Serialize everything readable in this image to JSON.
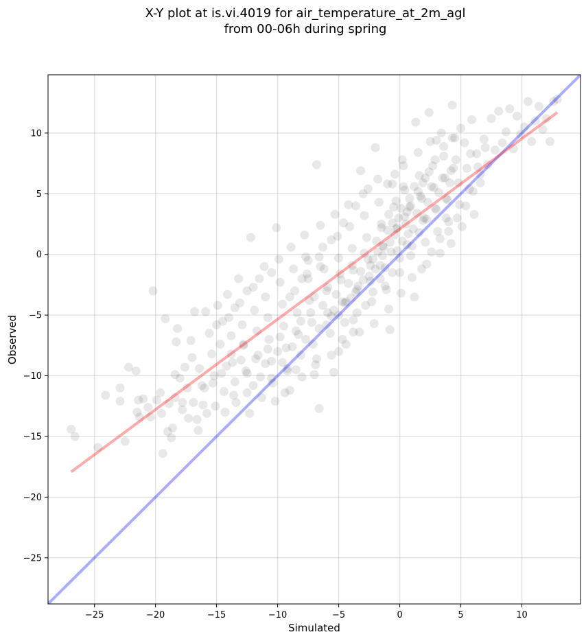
{
  "chart_data": {
    "type": "scatter",
    "title_line1": "X-Y plot at is.vi.4019 for air_temperature_at_2m_agl",
    "title_line2": "from 00-06h during spring",
    "xlabel": "Simulated",
    "ylabel": "Observed",
    "xlim": [
      -28.8,
      14.8
    ],
    "ylim": [
      -28.8,
      14.8
    ],
    "x_ticks": [
      -25,
      -20,
      -15,
      -10,
      -5,
      0,
      5,
      10
    ],
    "y_ticks": [
      -25,
      -20,
      -15,
      -10,
      -5,
      0,
      5,
      10
    ],
    "x_tick_labels": [
      "−25",
      "−20",
      "−15",
      "−10",
      "−5",
      "0",
      "5",
      "10"
    ],
    "y_tick_labels": [
      "−25",
      "−20",
      "−15",
      "−10",
      "−5",
      "0",
      "5",
      "10"
    ],
    "grid": true,
    "point_color": "#000000",
    "point_opacity": 0.09,
    "points": [
      [
        -26.9,
        -14.4
      ],
      [
        -26.6,
        -15.0
      ],
      [
        -24.7,
        -15.9
      ],
      [
        -24.1,
        -11.6
      ],
      [
        -22.9,
        -12.1
      ],
      [
        -22.9,
        -11.0
      ],
      [
        -22.5,
        -15.4
      ],
      [
        -22.2,
        -9.3
      ],
      [
        -21.6,
        -9.6
      ],
      [
        -21.5,
        -13.0
      ],
      [
        -21.3,
        -13.4
      ],
      [
        -21.0,
        -11.9
      ],
      [
        -20.6,
        -12.6
      ],
      [
        -20.2,
        -3.0
      ],
      [
        -19.9,
        -12.0
      ],
      [
        -19.5,
        -13.1
      ],
      [
        -19.4,
        -16.4
      ],
      [
        -19.2,
        -5.3
      ],
      [
        -18.9,
        -12.3
      ],
      [
        -18.7,
        -15.1
      ],
      [
        -18.6,
        -14.3
      ],
      [
        -18.4,
        -11.8
      ],
      [
        -18.3,
        -7.2
      ],
      [
        -18.2,
        -6.1
      ],
      [
        -18.0,
        -10.2
      ],
      [
        -17.8,
        -12.8
      ],
      [
        -17.6,
        -9.3
      ],
      [
        -17.4,
        -11.0
      ],
      [
        -17.3,
        -13.5
      ],
      [
        -17.1,
        -7.1
      ],
      [
        -16.9,
        -12.2
      ],
      [
        -16.8,
        -4.7
      ],
      [
        -16.5,
        -14.5
      ],
      [
        -16.4,
        -9.4
      ],
      [
        -16.2,
        -10.8
      ],
      [
        -16.1,
        -12.4
      ],
      [
        -15.9,
        -4.7
      ],
      [
        -15.8,
        -13.1
      ],
      [
        -15.6,
        -6.5
      ],
      [
        -15.4,
        -8.2
      ],
      [
        -15.3,
        -10.6
      ],
      [
        -15.1,
        -12.5
      ],
      [
        -15.0,
        -5.8
      ],
      [
        -14.9,
        -4.2
      ],
      [
        -14.7,
        -7.4
      ],
      [
        -14.6,
        -9.8
      ],
      [
        -14.4,
        -11.3
      ],
      [
        -14.3,
        -13.0
      ],
      [
        -14.1,
        -3.3
      ],
      [
        -14.0,
        -5.2
      ],
      [
        -13.8,
        -6.7
      ],
      [
        -13.7,
        -8.9
      ],
      [
        -13.5,
        -10.5
      ],
      [
        -13.4,
        -12.2
      ],
      [
        -13.2,
        -2.0
      ],
      [
        -13.1,
        -4.0
      ],
      [
        -12.9,
        -5.8
      ],
      [
        -12.8,
        -7.5
      ],
      [
        -12.6,
        -9.6
      ],
      [
        -12.5,
        -11.4
      ],
      [
        -12.3,
        -13.1
      ],
      [
        -12.2,
        1.4
      ],
      [
        -12.0,
        -2.7
      ],
      [
        -11.9,
        -4.6
      ],
      [
        -11.7,
        -6.3
      ],
      [
        -11.6,
        -8.3
      ],
      [
        -11.4,
        -10.1
      ],
      [
        -11.3,
        -11.8
      ],
      [
        -11.1,
        -1.0
      ],
      [
        -11.0,
        -3.5
      ],
      [
        -10.8,
        -5.2
      ],
      [
        -10.7,
        -7.0
      ],
      [
        -10.5,
        -8.8
      ],
      [
        -10.4,
        -10.6
      ],
      [
        -10.2,
        -12.1
      ],
      [
        -10.1,
        2.2
      ],
      [
        -9.9,
        -0.4
      ],
      [
        -9.8,
        -2.3
      ],
      [
        -9.6,
        -4.1
      ],
      [
        -9.5,
        -5.9
      ],
      [
        -9.3,
        -7.7
      ],
      [
        -9.2,
        -9.4
      ],
      [
        -9.0,
        -11.2
      ],
      [
        -8.9,
        0.6
      ],
      [
        -8.7,
        -1.2
      ],
      [
        -8.6,
        -3.0
      ],
      [
        -8.4,
        -4.8
      ],
      [
        -8.3,
        -6.6
      ],
      [
        -8.1,
        -8.3
      ],
      [
        -8.0,
        -10.1
      ],
      [
        -7.8,
        1.6
      ],
      [
        -7.7,
        -0.2
      ],
      [
        -7.5,
        -2.0
      ],
      [
        -7.4,
        -3.8
      ],
      [
        -7.2,
        -5.6
      ],
      [
        -7.1,
        -7.4
      ],
      [
        -6.9,
        -9.1
      ],
      [
        -6.8,
        7.4
      ],
      [
        -6.6,
        -12.7
      ],
      [
        -6.5,
        2.4
      ],
      [
        -6.3,
        0.6
      ],
      [
        -6.2,
        -1.2
      ],
      [
        -6.0,
        -3.0
      ],
      [
        -5.9,
        -4.8
      ],
      [
        -5.7,
        -6.5
      ],
      [
        -5.6,
        -8.3
      ],
      [
        -5.4,
        -9.7
      ],
      [
        -5.3,
        3.3
      ],
      [
        -5.1,
        1.5
      ],
      [
        -5.0,
        -0.3
      ],
      [
        -4.8,
        -2.1
      ],
      [
        -4.7,
        -3.9
      ],
      [
        -4.5,
        -5.6
      ],
      [
        -4.4,
        -7.4
      ],
      [
        -4.2,
        4.1
      ],
      [
        -4.1,
        2.3
      ],
      [
        -3.9,
        0.5
      ],
      [
        -3.8,
        -1.3
      ],
      [
        -3.6,
        -3.1
      ],
      [
        -3.5,
        -4.8
      ],
      [
        -3.3,
        -6.4
      ],
      [
        -3.2,
        6.9
      ],
      [
        -3.0,
        5.0
      ],
      [
        -2.9,
        3.2
      ],
      [
        -2.7,
        1.4
      ],
      [
        -2.6,
        -0.4
      ],
      [
        -2.4,
        -2.2
      ],
      [
        -2.3,
        -3.9
      ],
      [
        -2.1,
        -5.7
      ],
      [
        -2.0,
        8.8
      ],
      [
        -1.8,
        6.2
      ],
      [
        -1.7,
        4.3
      ],
      [
        -1.5,
        2.5
      ],
      [
        -1.4,
        0.7
      ],
      [
        -1.2,
        -1.1
      ],
      [
        -1.1,
        -2.9
      ],
      [
        -0.9,
        -4.5
      ],
      [
        -0.8,
        -6.2
      ],
      [
        -0.6,
        5.8
      ],
      [
        -0.5,
        3.9
      ],
      [
        -0.3,
        2.1
      ],
      [
        -0.2,
        0.3
      ],
      [
        0.0,
        -1.5
      ],
      [
        0.1,
        -3.2
      ],
      [
        0.3,
        7.3
      ],
      [
        0.4,
        5.3
      ],
      [
        0.6,
        3.5
      ],
      [
        0.7,
        1.7
      ],
      [
        0.9,
        -0.1
      ],
      [
        1.0,
        -1.9
      ],
      [
        1.2,
        -3.5
      ],
      [
        1.3,
        10.9
      ],
      [
        1.5,
        8.4
      ],
      [
        1.6,
        6.5
      ],
      [
        1.8,
        4.6
      ],
      [
        1.9,
        2.8
      ],
      [
        2.1,
        1.0
      ],
      [
        2.2,
        -0.8
      ],
      [
        2.4,
        11.7
      ],
      [
        2.5,
        9.3
      ],
      [
        2.7,
        7.3
      ],
      [
        2.8,
        5.5
      ],
      [
        3.0,
        3.7
      ],
      [
        3.1,
        1.9
      ],
      [
        3.3,
        0.1
      ],
      [
        3.4,
        10.0
      ],
      [
        3.6,
        8.1
      ],
      [
        3.7,
        6.3
      ],
      [
        3.9,
        4.5
      ],
      [
        4.0,
        2.7
      ],
      [
        4.2,
        0.9
      ],
      [
        4.3,
        12.3
      ],
      [
        4.5,
        9.6
      ],
      [
        4.6,
        7.8
      ],
      [
        4.8,
        5.9
      ],
      [
        4.9,
        4.1
      ],
      [
        5.1,
        2.3
      ],
      [
        5.3,
        9.2
      ],
      [
        5.5,
        7.1
      ],
      [
        5.7,
        5.4
      ],
      [
        5.9,
        11.1
      ],
      [
        6.1,
        3.3
      ],
      [
        6.3,
        8.3
      ],
      [
        6.6,
        6.6
      ],
      [
        6.9,
        9.5
      ],
      [
        7.2,
        7.4
      ],
      [
        7.5,
        11.2
      ],
      [
        7.8,
        8.6
      ],
      [
        8.1,
        11.8
      ],
      [
        8.4,
        9.2
      ],
      [
        8.7,
        10.1
      ],
      [
        9.0,
        12.0
      ],
      [
        9.3,
        8.7
      ],
      [
        9.6,
        11.4
      ],
      [
        9.9,
        9.9
      ],
      [
        10.2,
        10.5
      ],
      [
        10.5,
        12.6
      ],
      [
        10.8,
        9.3
      ],
      [
        11.1,
        11.0
      ],
      [
        11.4,
        12.2
      ],
      [
        11.7,
        10.3
      ],
      [
        12.0,
        11.2
      ],
      [
        12.3,
        9.3
      ],
      [
        12.6,
        12.6
      ],
      [
        12.9,
        12.8
      ],
      [
        -9.6,
        -8.9
      ],
      [
        -9.2,
        -9.6
      ],
      [
        -8.8,
        -7.6
      ],
      [
        -8.5,
        -6.3
      ],
      [
        -8.1,
        -5.5
      ],
      [
        -7.7,
        -7.0
      ],
      [
        -7.3,
        -4.8
      ],
      [
        -7.0,
        -3.5
      ],
      [
        -6.6,
        -6.1
      ],
      [
        -6.3,
        -4.2
      ],
      [
        -5.9,
        -2.7
      ],
      [
        -5.6,
        -5.1
      ],
      [
        -5.2,
        -3.3
      ],
      [
        -4.9,
        -1.6
      ],
      [
        -4.5,
        -4.0
      ],
      [
        -4.2,
        -2.4
      ],
      [
        -3.9,
        -0.9
      ],
      [
        -3.5,
        -2.9
      ],
      [
        -3.2,
        -1.4
      ],
      [
        -2.9,
        0.1
      ],
      [
        -2.5,
        -1.8
      ],
      [
        -2.2,
        -0.4
      ],
      [
        -1.9,
        1.1
      ],
      [
        -1.6,
        -0.9
      ],
      [
        -1.3,
        0.6
      ],
      [
        -1.0,
        2.0
      ],
      [
        -0.7,
        0.2
      ],
      [
        -0.4,
        1.6
      ],
      [
        -0.1,
        3.0
      ],
      [
        0.2,
        1.1
      ],
      [
        0.5,
        2.5
      ],
      [
        0.8,
        3.9
      ],
      [
        1.1,
        2.1
      ],
      [
        1.4,
        3.4
      ],
      [
        1.7,
        4.8
      ],
      [
        2.0,
        3.0
      ],
      [
        2.3,
        4.3
      ],
      [
        2.6,
        5.6
      ],
      [
        2.9,
        3.8
      ],
      [
        3.2,
        5.1
      ],
      [
        3.5,
        6.3
      ],
      [
        3.8,
        4.6
      ],
      [
        4.1,
        5.9
      ],
      [
        4.4,
        7.1
      ],
      [
        -1.5,
        2.2
      ],
      [
        -0.9,
        3.3
      ],
      [
        -0.3,
        4.4
      ],
      [
        0.3,
        5.6
      ],
      [
        0.9,
        4.0
      ],
      [
        1.5,
        5.2
      ],
      [
        2.1,
        6.3
      ],
      [
        -2.0,
        -1.2
      ],
      [
        -1.4,
        -0.1
      ],
      [
        -0.8,
        1.0
      ],
      [
        -0.2,
        2.2
      ],
      [
        0.4,
        3.1
      ],
      [
        1.0,
        0.7
      ],
      [
        1.6,
        1.8
      ],
      [
        2.2,
        2.9
      ],
      [
        -3.0,
        -2.1
      ],
      [
        -2.4,
        -0.9
      ],
      [
        -1.8,
        0.2
      ],
      [
        -1.2,
        -2.6
      ],
      [
        -0.6,
        -1.5
      ],
      [
        0.0,
        -0.3
      ],
      [
        0.6,
        0.8
      ],
      [
        -4.0,
        -3.6
      ],
      [
        -3.4,
        -2.6
      ],
      [
        -2.8,
        -4.2
      ],
      [
        -2.2,
        -3.1
      ],
      [
        -1.6,
        -2.0
      ],
      [
        -5.0,
        -5.0
      ],
      [
        -4.4,
        -3.9
      ],
      [
        -3.8,
        -5.4
      ],
      [
        -6.0,
        -5.8
      ],
      [
        -5.4,
        -4.6
      ],
      [
        -11.0,
        -9.0
      ],
      [
        -10.5,
        -10.2
      ],
      [
        -10.0,
        -8.0
      ],
      [
        -9.4,
        -11.4
      ],
      [
        -12.5,
        -9.8
      ],
      [
        -12.0,
        -10.8
      ],
      [
        -13.0,
        -8.7
      ],
      [
        -13.6,
        -11.6
      ],
      [
        -14.2,
        -9.2
      ],
      [
        -15.2,
        -10.0
      ],
      [
        -16.0,
        -11.0
      ],
      [
        -8.0,
        -2.0
      ],
      [
        -7.5,
        -0.5
      ],
      [
        -6.5,
        -1.0
      ],
      [
        -9.0,
        -3.5
      ],
      [
        -10.5,
        -1.5
      ],
      [
        -11.5,
        -2.0
      ],
      [
        -12.5,
        -3.0
      ],
      [
        -13.5,
        -4.4
      ],
      [
        -14.5,
        -5.5
      ],
      [
        -8.5,
        -9.5
      ],
      [
        -7.0,
        -9.9
      ],
      [
        -5.0,
        -8.0
      ],
      [
        -3.8,
        -6.4
      ],
      [
        -4.7,
        -7.0
      ],
      [
        -6.8,
        -8.6
      ],
      [
        1.8,
        -1.2
      ],
      [
        2.6,
        0.2
      ],
      [
        3.3,
        1.3
      ],
      [
        4.0,
        1.9
      ],
      [
        4.7,
        3.0
      ],
      [
        5.4,
        4.0
      ],
      [
        6.0,
        5.2
      ],
      [
        6.6,
        5.9
      ],
      [
        2.9,
        7.8
      ],
      [
        3.6,
        8.9
      ],
      [
        4.3,
        9.6
      ],
      [
        5.0,
        10.4
      ],
      [
        3.0,
        9.4
      ],
      [
        -1.0,
        5.8
      ],
      [
        -0.4,
        6.6
      ],
      [
        0.2,
        7.8
      ],
      [
        -2.6,
        5.4
      ],
      [
        -3.6,
        4.0
      ],
      [
        -4.6,
        2.6
      ],
      [
        -5.6,
        1.2
      ],
      [
        -6.6,
        -0.2
      ],
      [
        -7.6,
        -1.6
      ],
      [
        1.2,
        5.6
      ],
      [
        2.4,
        6.8
      ],
      [
        0.8,
        4.6
      ],
      [
        1.9,
        5.9
      ],
      [
        -0.6,
        2.6
      ],
      [
        0.1,
        3.8
      ],
      [
        3.8,
        3.0
      ],
      [
        4.2,
        6.9
      ],
      [
        5.8,
        8.3
      ],
      [
        6.4,
        7.2
      ],
      [
        7.0,
        8.8
      ],
      [
        -9.8,
        -6.8
      ],
      [
        -10.8,
        -7.8
      ],
      [
        -11.8,
        -8.6
      ],
      [
        -12.8,
        -7.4
      ],
      [
        -13.8,
        -8.2
      ],
      [
        -17.0,
        -8.5
      ],
      [
        -18.4,
        -9.9
      ],
      [
        -19.6,
        -11.4
      ],
      [
        -20.4,
        -13.4
      ],
      [
        -21.4,
        -12.0
      ],
      [
        -19.0,
        -14.6
      ],
      [
        -17.8,
        -12.2
      ],
      [
        -16.6,
        -13.6
      ]
    ]
  }
}
